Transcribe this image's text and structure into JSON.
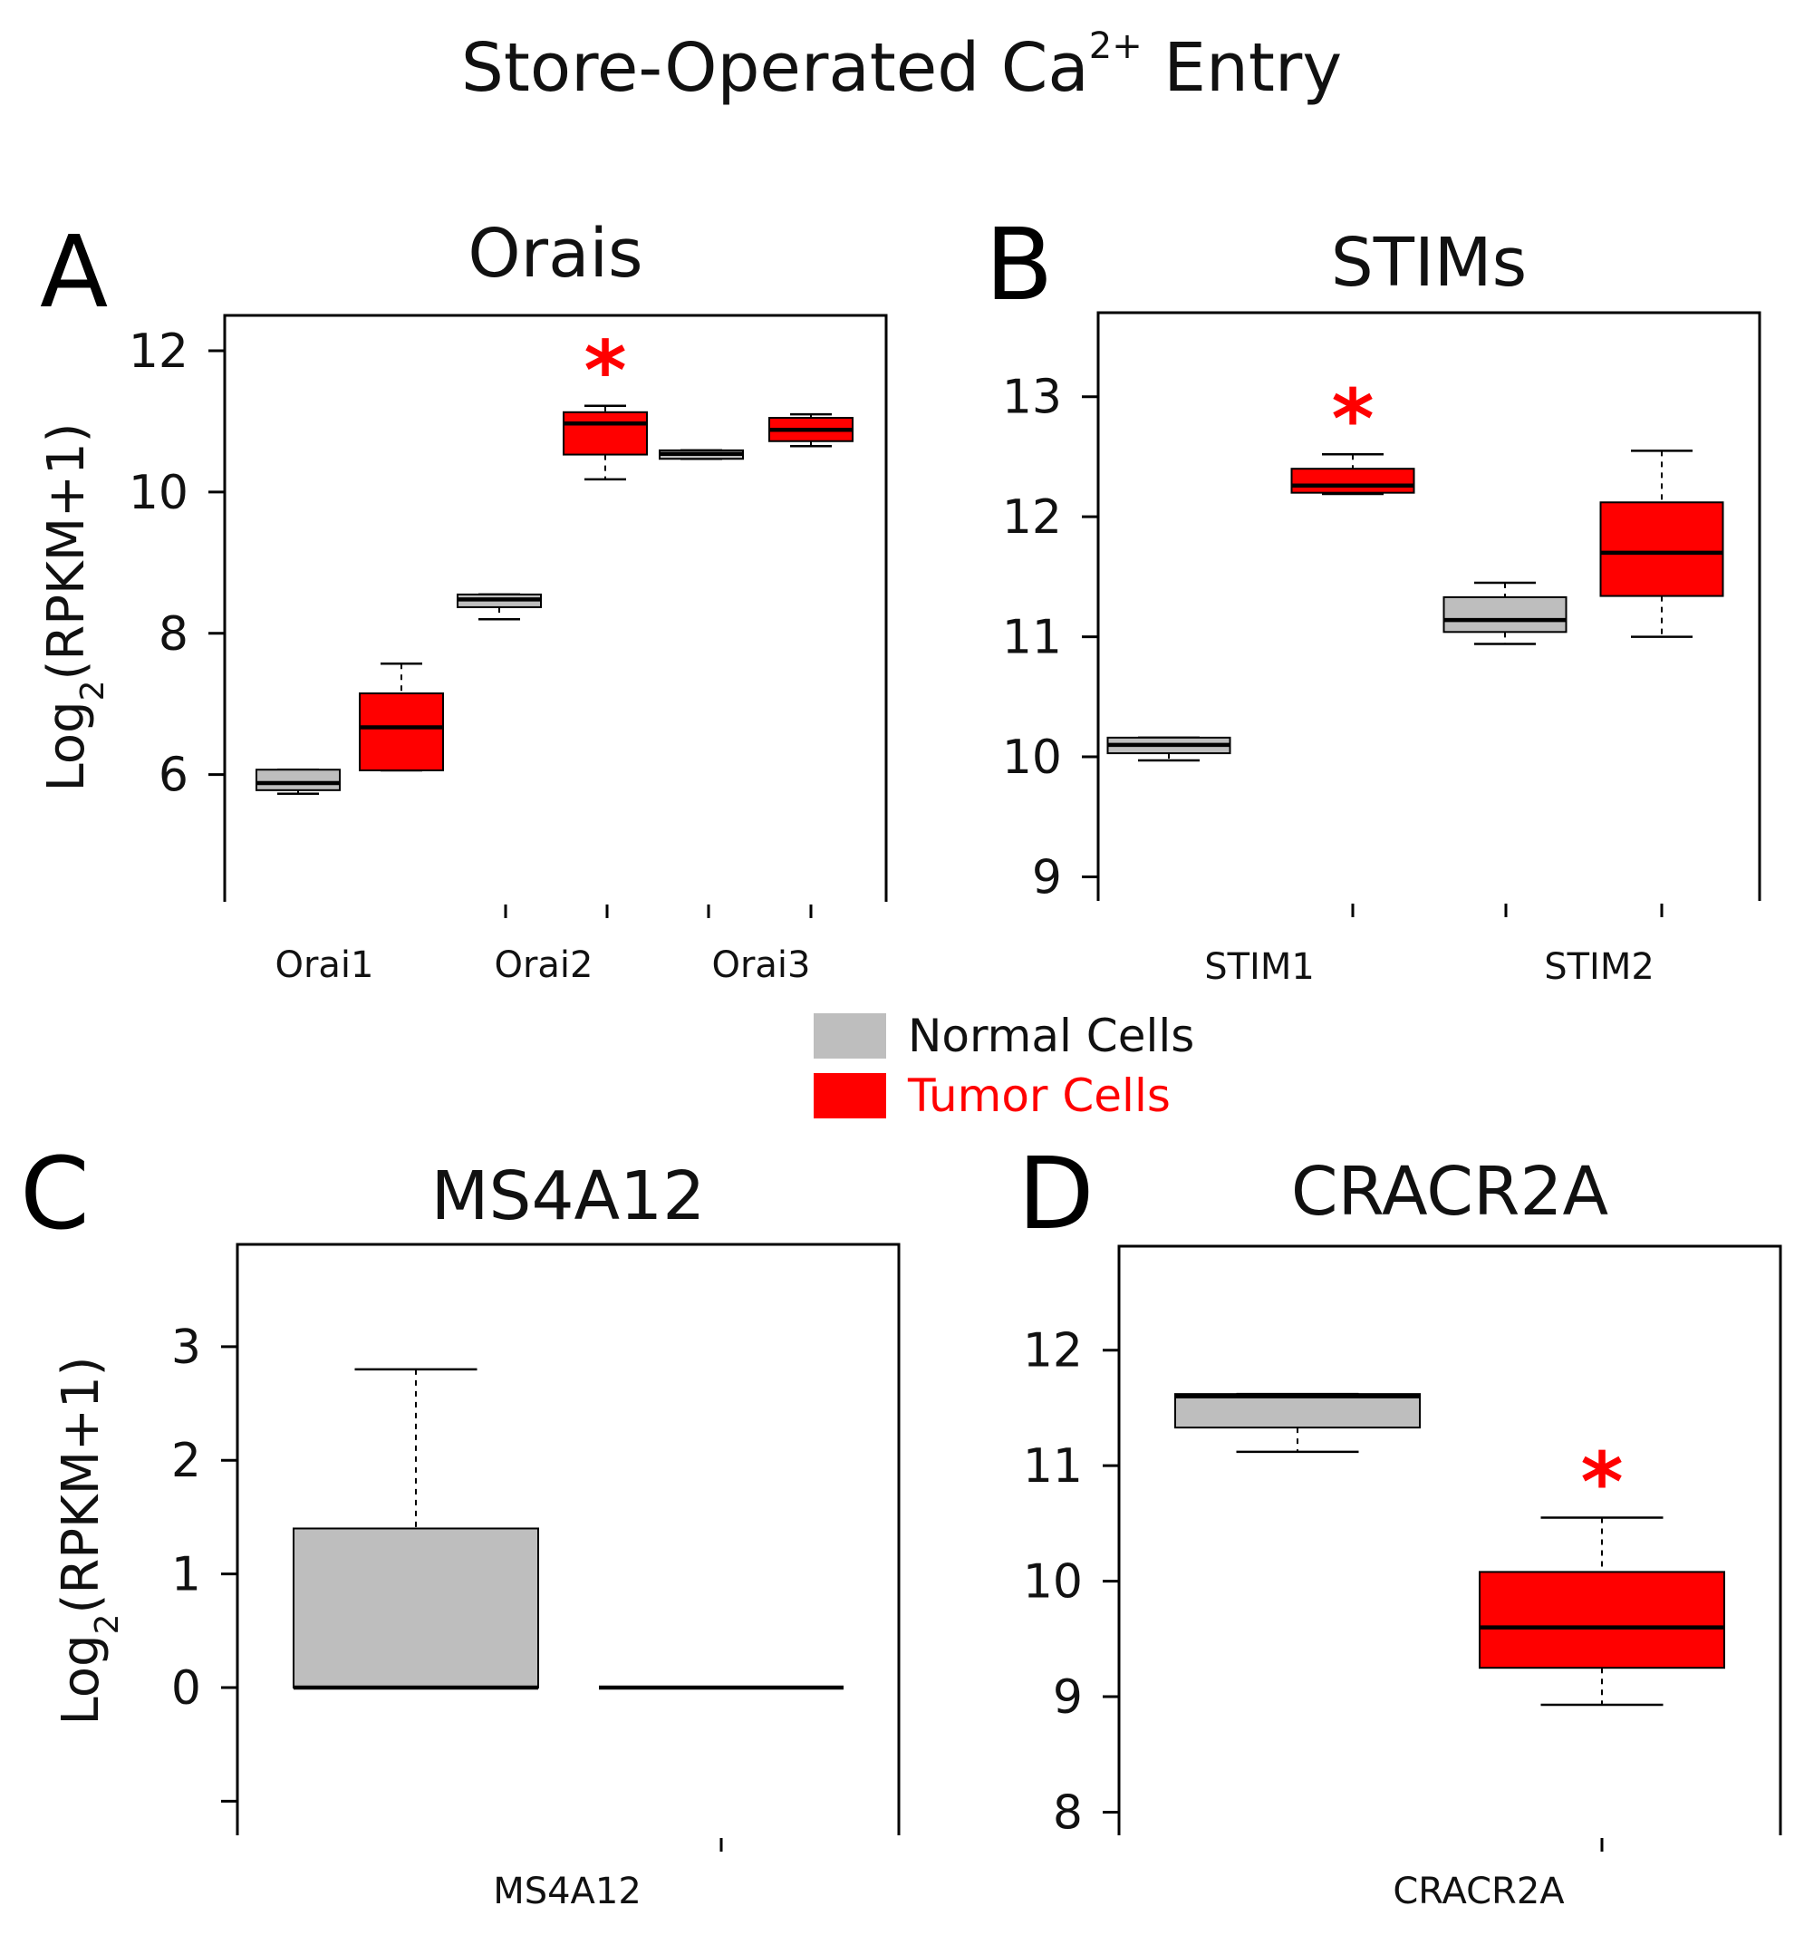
{
  "figure": {
    "title": "Store-Operated Ca",
    "title_sup": "2+",
    "title_suffix": " Entry",
    "normal_color": "#bebebe",
    "tumor_color": "#ff0000",
    "star_color": "#ff0000"
  },
  "legend": {
    "items": [
      {
        "label": "Normal Cells",
        "color": "#bebebe",
        "text_color": "#111111"
      },
      {
        "label": "Tumor Cells",
        "color": "#ff0000",
        "text_color": "#ff0000"
      }
    ]
  },
  "chart_data": [
    {
      "type": "box",
      "panel": "A",
      "title": "Orais",
      "ylabel": "Log",
      "ylabel_sub": "2",
      "ylabel_suffix": "(RPKM+1)",
      "ylim": [
        4.2,
        12.5
      ],
      "yticks": [
        6,
        8,
        10,
        12
      ],
      "categories": [
        "Orai1",
        "Orai2",
        "Orai3"
      ],
      "boxes": [
        {
          "category": "Orai1",
          "group": "Normal",
          "whisker_low": 5.73,
          "q1": 5.78,
          "median": 5.88,
          "q3": 6.07,
          "whisker_high": 6.07,
          "significant": false
        },
        {
          "category": "Orai1",
          "group": "Tumor",
          "whisker_low": 6.06,
          "q1": 6.06,
          "median": 6.67,
          "q3": 7.15,
          "whisker_high": 7.57,
          "significant": false
        },
        {
          "category": "Orai2",
          "group": "Normal",
          "whisker_low": 8.2,
          "q1": 8.37,
          "median": 8.48,
          "q3": 8.55,
          "whisker_high": 8.55,
          "significant": false
        },
        {
          "category": "Orai2",
          "group": "Tumor",
          "whisker_low": 10.18,
          "q1": 10.53,
          "median": 10.97,
          "q3": 11.13,
          "whisker_high": 11.22,
          "significant": true
        },
        {
          "category": "Orai3",
          "group": "Normal",
          "whisker_low": 10.47,
          "q1": 10.47,
          "median": 10.54,
          "q3": 10.59,
          "whisker_high": 10.59,
          "significant": false
        },
        {
          "category": "Orai3",
          "group": "Tumor",
          "whisker_low": 10.65,
          "q1": 10.72,
          "median": 10.88,
          "q3": 11.05,
          "whisker_high": 11.1,
          "significant": false
        }
      ]
    },
    {
      "type": "box",
      "panel": "B",
      "title": "STIMs",
      "ylim": [
        8.8,
        13.7
      ],
      "yticks": [
        9,
        10,
        11,
        12,
        13
      ],
      "categories": [
        "STIM1",
        "STIM2"
      ],
      "boxes": [
        {
          "category": "STIM1",
          "group": "Normal",
          "whisker_low": 9.97,
          "q1": 10.03,
          "median": 10.1,
          "q3": 10.16,
          "whisker_high": 10.16,
          "significant": false
        },
        {
          "category": "STIM1",
          "group": "Tumor",
          "whisker_low": 12.19,
          "q1": 12.2,
          "median": 12.26,
          "q3": 12.4,
          "whisker_high": 12.52,
          "significant": true
        },
        {
          "category": "STIM2",
          "group": "Normal",
          "whisker_low": 10.94,
          "q1": 11.04,
          "median": 11.14,
          "q3": 11.33,
          "whisker_high": 11.45,
          "significant": false
        },
        {
          "category": "STIM2",
          "group": "Tumor",
          "whisker_low": 11.0,
          "q1": 11.34,
          "median": 11.7,
          "q3": 12.12,
          "whisker_high": 12.55,
          "significant": false
        }
      ]
    },
    {
      "type": "box",
      "panel": "C",
      "title": "MS4A12",
      "ylabel": "Log",
      "ylabel_sub": "2",
      "ylabel_suffix": "(RPKM+1)",
      "ylim": [
        -1.3,
        3.9
      ],
      "yticks": [
        0,
        1,
        2,
        3
      ],
      "categories": [
        "MS4A12"
      ],
      "boxes": [
        {
          "category": "MS4A12",
          "group": "Normal",
          "whisker_low": 0,
          "q1": 0,
          "median": 0,
          "q3": 1.4,
          "whisker_high": 2.8,
          "significant": false
        },
        {
          "category": "MS4A12",
          "group": "Tumor",
          "whisker_low": 0,
          "q1": 0,
          "median": 0,
          "q3": 0,
          "whisker_high": 0,
          "significant": false
        }
      ]
    },
    {
      "type": "box",
      "panel": "D",
      "title": "CRACR2A",
      "ylim": [
        7.8,
        12.9
      ],
      "yticks": [
        8,
        9,
        10,
        11,
        12
      ],
      "categories": [
        "CRACR2A"
      ],
      "boxes": [
        {
          "category": "CRACR2A",
          "group": "Normal",
          "whisker_low": 11.12,
          "q1": 11.33,
          "median": 11.6,
          "q3": 11.62,
          "whisker_high": 11.62,
          "significant": false
        },
        {
          "category": "CRACR2A",
          "group": "Tumor",
          "whisker_low": 8.93,
          "q1": 9.25,
          "median": 9.6,
          "q3": 10.08,
          "whisker_high": 10.55,
          "significant": true
        }
      ]
    }
  ]
}
